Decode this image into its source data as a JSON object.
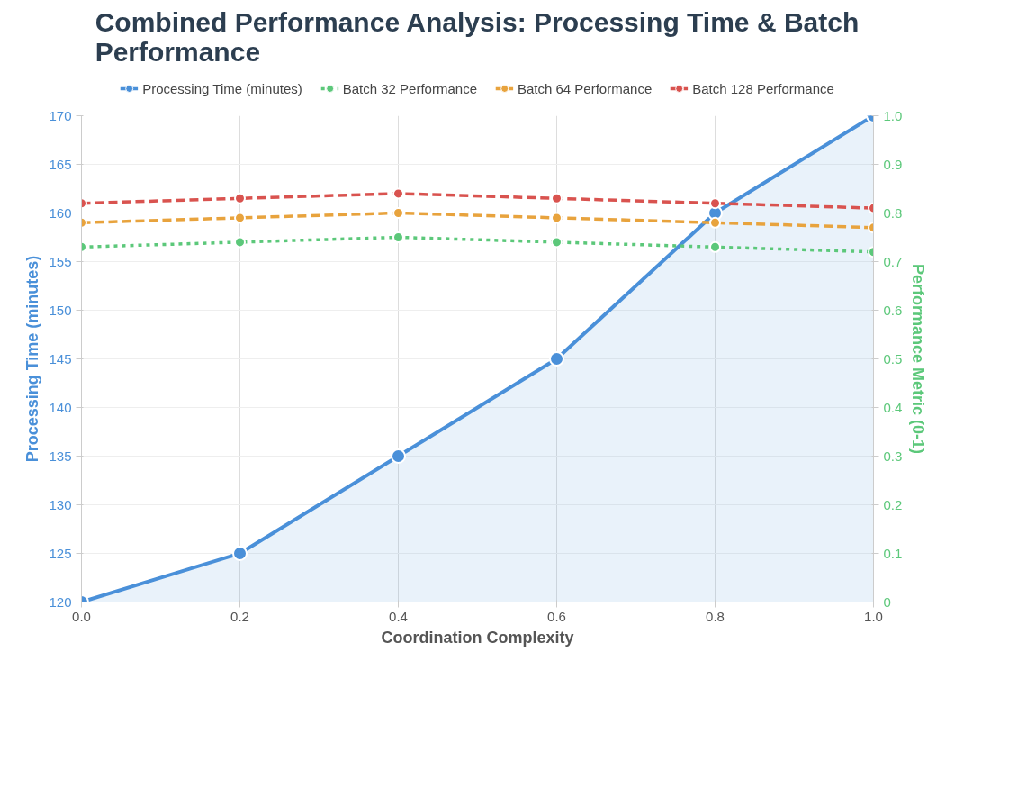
{
  "chart_data": {
    "type": "line",
    "title": "Combined Performance Analysis: Processing Time & Batch Performance",
    "xlabel": "Coordination Complexity",
    "ylabel": "Processing Time (minutes)",
    "y2label": "Performance Metric (0-1)",
    "x": [
      0,
      0.2,
      0.4,
      0.6,
      0.8,
      1.0
    ],
    "xlim": [
      0,
      1
    ],
    "xticks": [
      {
        "value": 0,
        "label": "0.0"
      },
      0.2,
      0.4,
      0.6,
      0.8,
      {
        "value": 1,
        "label": "1.0"
      }
    ],
    "ylim": [
      120,
      170
    ],
    "yticks": [
      120,
      125,
      130,
      135,
      140,
      145,
      150,
      155,
      160,
      165,
      170
    ],
    "y2lim": [
      0,
      1
    ],
    "y2ticks": [
      0,
      0.1,
      0.2,
      0.3,
      0.4,
      0.5,
      0.6,
      0.7,
      0.8,
      0.9,
      {
        "value": 1,
        "label": "1.0"
      }
    ],
    "series": [
      {
        "name": "Processing Time (minutes)",
        "type": "area",
        "color": "#4a90d9",
        "line_style": "solid",
        "values": [
          120,
          125,
          135,
          145,
          160,
          170
        ]
      },
      {
        "name": "Batch 32 Performance",
        "type": "line",
        "axis": "y2",
        "color": "#5cc87a",
        "line_style": "dotted",
        "values": [
          0.73,
          0.74,
          0.75,
          0.74,
          0.73,
          0.72
        ]
      },
      {
        "name": "Batch 64 Performance",
        "type": "line",
        "axis": "y2",
        "color": "#e8a33d",
        "line_style": "dashed",
        "values": [
          0.78,
          0.79,
          0.8,
          0.79,
          0.78,
          0.77
        ]
      },
      {
        "name": "Batch 128 Performance",
        "type": "line",
        "axis": "y2",
        "color": "#d9534f",
        "line_style": "dashed",
        "values": [
          0.82,
          0.83,
          0.84,
          0.83,
          0.82,
          0.81
        ]
      }
    ],
    "grid": true,
    "legend": "top",
    "marker": "circle"
  }
}
